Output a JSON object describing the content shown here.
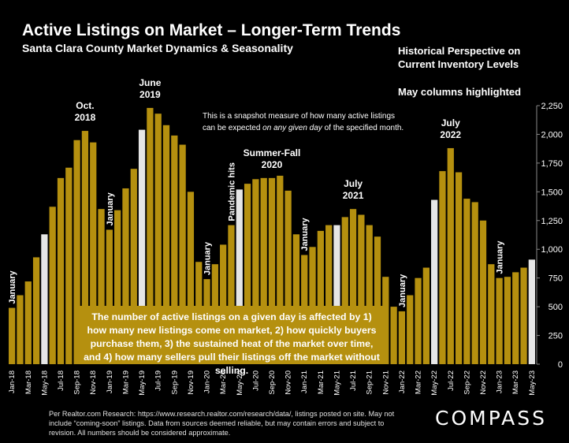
{
  "header": {
    "title": "Active Listings on Market – Longer-Term Trends",
    "subtitle": "Santa Clara County Market Dynamics & Seasonality",
    "right_note_1": "Historical Perspective on",
    "right_note_2": "Current Inventory Levels",
    "right_note_3": "May columns highlighted"
  },
  "snapshot_note": {
    "line1": "This is a snapshot measure of how many active listings",
    "line2_pre": "can be expected ",
    "line2_em": "on any given day",
    "line2_post": " of the specified month."
  },
  "callout_text": "The number of active listings on a given day is affected by 1) how many new listings come on market, 2) how quickly buyers purchase them, 3) the sustained heat of the market over time, and 4) how many sellers pull their listings off the market without selling.",
  "footer_text": "Per Realtor.com Research:  https://www.research.realtor.com/research/data/, listings posted on site. May not include “coming-soon” listings. Data from sources deemed reliable, but may contain errors and subject to revision. All numbers should be considered approximate.",
  "logo_text": "COMPASS",
  "colors": {
    "bar": "#b5900f",
    "highlight": "#e6e6e6",
    "background": "#000000"
  },
  "chart_data": {
    "type": "bar",
    "title": "Active Listings on Market – Longer-Term Trends",
    "subtitle": "Santa Clara County Market Dynamics & Seasonality",
    "ylim": [
      0,
      2250
    ],
    "yticks": [
      0,
      250,
      500,
      750,
      1000,
      1250,
      1500,
      1750,
      2000,
      2250
    ],
    "ytick_labels": [
      "0",
      "250",
      "500",
      "750",
      "1,000",
      "1,250",
      "1,500",
      "1,750",
      "2,000",
      "2,250"
    ],
    "y_axis_side": "right",
    "highlight_month": "May",
    "categories": [
      "Jan-18",
      "Feb-18",
      "Mar-18",
      "Apr-18",
      "May-18",
      "Jun-18",
      "Jul-18",
      "Aug-18",
      "Sep-18",
      "Oct-18",
      "Nov-18",
      "Dec-18",
      "Jan-19",
      "Feb-19",
      "Mar-19",
      "Apr-19",
      "May-19",
      "Jun-19",
      "Jul-19",
      "Aug-19",
      "Sep-19",
      "Oct-19",
      "Nov-19",
      "Dec-19",
      "Jan-20",
      "Feb-20",
      "Mar-20",
      "Apr-20",
      "May-20",
      "Jun-20",
      "Jul-20",
      "Aug-20",
      "Sep-20",
      "Oct-20",
      "Nov-20",
      "Dec-20",
      "Jan-21",
      "Feb-21",
      "Mar-21",
      "Apr-21",
      "May-21",
      "Jun-21",
      "Jul-21",
      "Aug-21",
      "Sep-21",
      "Oct-21",
      "Nov-21",
      "Dec-21",
      "Jan-22",
      "Feb-22",
      "Mar-22",
      "Apr-22",
      "May-22",
      "Jun-22",
      "Jul-22",
      "Aug-22",
      "Sep-22",
      "Oct-22",
      "Nov-22",
      "Dec-22",
      "Jan-23",
      "Feb-23",
      "Mar-23",
      "Apr-23",
      "May-23"
    ],
    "values": [
      490,
      600,
      720,
      930,
      1130,
      1370,
      1620,
      1710,
      1950,
      2030,
      1930,
      1350,
      1170,
      1340,
      1530,
      1700,
      2040,
      2230,
      2180,
      2080,
      1990,
      1910,
      1500,
      890,
      740,
      870,
      1040,
      1210,
      1520,
      1570,
      1610,
      1620,
      1620,
      1640,
      1510,
      1130,
      950,
      1020,
      1160,
      1210,
      1210,
      1280,
      1350,
      1300,
      1210,
      1110,
      760,
      500,
      460,
      600,
      750,
      840,
      1430,
      1680,
      1880,
      1670,
      1440,
      1410,
      1250,
      870,
      750,
      760,
      800,
      840,
      910
    ],
    "xtick_labels": [
      "Jan-18",
      "Mar-18",
      "May-18",
      "Jul-18",
      "Sep-18",
      "Nov-18",
      "Jan-19",
      "Mar-19",
      "May-19",
      "Jul-19",
      "Sep-19",
      "Nov-19",
      "Jan-20",
      "Mar-20",
      "May-20",
      "Jul-20",
      "Sep-20",
      "Nov-20",
      "Jan-21",
      "Mar-21",
      "May-21",
      "Jul-21",
      "Sep-21",
      "Nov-21",
      "Jan-22",
      "Mar-22",
      "May-22",
      "Jul-22",
      "Sep-22",
      "Nov-22",
      "Jan-23",
      "Mar-23",
      "May-23"
    ],
    "annotations_horizontal": [
      {
        "index": 9,
        "line1": "Oct.",
        "line2": "2018"
      },
      {
        "index": 17,
        "line1": "June",
        "line2": "2019"
      },
      {
        "index": 32,
        "line1": "Summer-Fall",
        "line2": "2020"
      },
      {
        "index": 42,
        "line1": "July",
        "line2": "2021"
      },
      {
        "index": 54,
        "line1": "July",
        "line2": "2022"
      }
    ],
    "annotations_vertical": [
      {
        "index": 0,
        "text": "January"
      },
      {
        "index": 12,
        "text": "January"
      },
      {
        "index": 24,
        "text": "January"
      },
      {
        "index": 27,
        "text": "Pandemic hits"
      },
      {
        "index": 36,
        "text": "January"
      },
      {
        "index": 48,
        "text": "January"
      },
      {
        "index": 60,
        "text": "January"
      }
    ]
  }
}
